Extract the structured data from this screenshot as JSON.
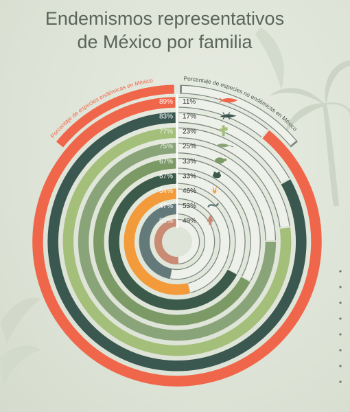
{
  "title": {
    "line1": "Endemismos  representativos",
    "line2": "de México por familia"
  },
  "chart_data": {
    "type": "radial-bar",
    "title": "Endemismos representativos de México por familia",
    "legend": {
      "endemic": "Porcentaje de especies endémicas en México",
      "non_endemic": "Porcentaje de especies no endémicas en México"
    },
    "series": [
      {
        "endemic": 89,
        "non_endemic": 11,
        "endemic_label": "89%",
        "non_label": "11%",
        "color": "#f0664a",
        "icon": "axolotl-icon"
      },
      {
        "endemic": 83,
        "non_endemic": 17,
        "endemic_label": "83%",
        "non_label": "17%",
        "color": "#3a5750",
        "icon": "lizard-icon"
      },
      {
        "endemic": 77,
        "non_endemic": 23,
        "endemic_label": "77%",
        "non_label": "23%",
        "color": "#a3bf7a",
        "icon": "cactus-icon"
      },
      {
        "endemic": 75,
        "non_endemic": 25,
        "endemic_label": "75%",
        "non_label": "25%",
        "color": "#8aa47a",
        "icon": "iguana-icon"
      },
      {
        "endemic": 67,
        "non_endemic": 33,
        "endemic_label": "67%",
        "non_label": "33%",
        "color": "#7c9a66",
        "icon": "turtle-icon"
      },
      {
        "endemic": 67,
        "non_endemic": 33,
        "endemic_label": "67%",
        "non_label": "33%",
        "color": "#3b5a4a",
        "icon": "frog-icon"
      },
      {
        "endemic": 54,
        "non_endemic": 46,
        "endemic_label": "54%",
        "non_label": "46%",
        "color": "#f39a3a",
        "icon": "agave-icon"
      },
      {
        "endemic": 47,
        "non_endemic": 53,
        "endemic_label": "47%",
        "non_label": "53%",
        "color": "#647a7a",
        "icon": "snake-icon"
      },
      {
        "endemic": 51,
        "non_endemic": 49,
        "endemic_label": "51%",
        "non_label": "49%",
        "color": "#c98b74",
        "icon": "pine-icon"
      }
    ]
  }
}
